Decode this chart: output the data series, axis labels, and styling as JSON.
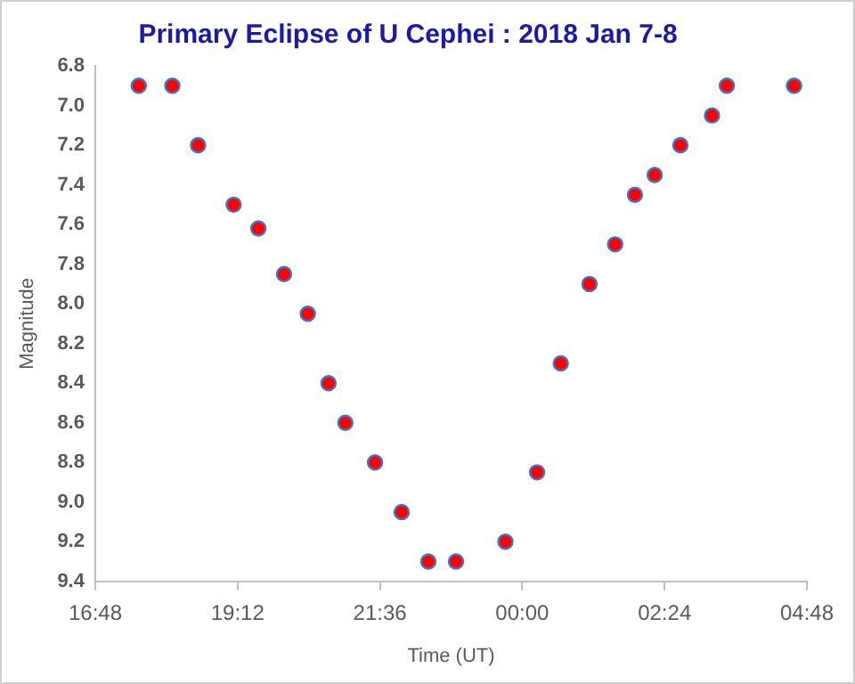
{
  "chart_data": {
    "type": "scatter",
    "title": "Primary Eclipse of U Cephei : 2018 Jan 7-8",
    "xlabel": "Time (UT)",
    "ylabel": "Magnitude",
    "x": [
      "2018-01-07T17:32",
      "2018-01-07T18:06",
      "2018-01-07T18:32",
      "2018-01-07T19:08",
      "2018-01-07T19:33",
      "2018-01-07T19:59",
      "2018-01-07T20:23",
      "2018-01-07T20:44",
      "2018-01-07T21:01",
      "2018-01-07T21:31",
      "2018-01-07T21:58",
      "2018-01-07T22:25",
      "2018-01-07T22:53",
      "2018-01-07T23:43",
      "2018-01-08T00:15",
      "2018-01-08T00:39",
      "2018-01-08T01:08",
      "2018-01-08T01:34",
      "2018-01-08T01:54",
      "2018-01-08T02:14",
      "2018-01-08T02:40",
      "2018-01-08T03:12",
      "2018-01-08T03:27",
      "2018-01-08T04:35"
    ],
    "series": [
      {
        "color": "#ff0000",
        "values": [
          6.9,
          6.9,
          7.2,
          7.5,
          7.62,
          7.85,
          8.05,
          8.4,
          8.6,
          8.8,
          9.05,
          9.3,
          9.3,
          9.2,
          8.85,
          8.3,
          7.9,
          7.7,
          7.45,
          7.35,
          7.2,
          7.05,
          6.9,
          6.9
        ]
      }
    ],
    "xlim": [
      "2018-01-07T16:48",
      "2018-01-08T04:48"
    ],
    "xticks": [
      {
        "value": "2018-01-07T16:48",
        "label": "16:48"
      },
      {
        "value": "2018-01-07T19:12",
        "label": "19:12"
      },
      {
        "value": "2018-01-07T21:36",
        "label": "21:36"
      },
      {
        "value": "2018-01-08T00:00",
        "label": "00:00"
      },
      {
        "value": "2018-01-08T02:24",
        "label": "02:24"
      },
      {
        "value": "2018-01-08T04:48",
        "label": "04:48"
      }
    ],
    "ylim": [
      9.4,
      6.8
    ],
    "yticks": [
      {
        "value": 6.8,
        "label": "6.8"
      },
      {
        "value": 7,
        "label": "7.0"
      },
      {
        "value": 7.2,
        "label": "7.2"
      },
      {
        "value": 7.4,
        "label": "7.4"
      },
      {
        "value": 7.6,
        "label": "7.6"
      },
      {
        "value": 7.8,
        "label": "7.8"
      },
      {
        "value": 8,
        "label": "8.0"
      },
      {
        "value": 8.2,
        "label": "8.2"
      },
      {
        "value": 8.4,
        "label": "8.4"
      },
      {
        "value": 8.6,
        "label": "8.6"
      },
      {
        "value": 8.8,
        "label": "8.8"
      },
      {
        "value": 9,
        "label": "9.0"
      },
      {
        "value": 9.2,
        "label": "9.2"
      },
      {
        "value": 9.4,
        "label": "9.4"
      }
    ],
    "grid": false,
    "legend": false,
    "marker": "circle"
  }
}
